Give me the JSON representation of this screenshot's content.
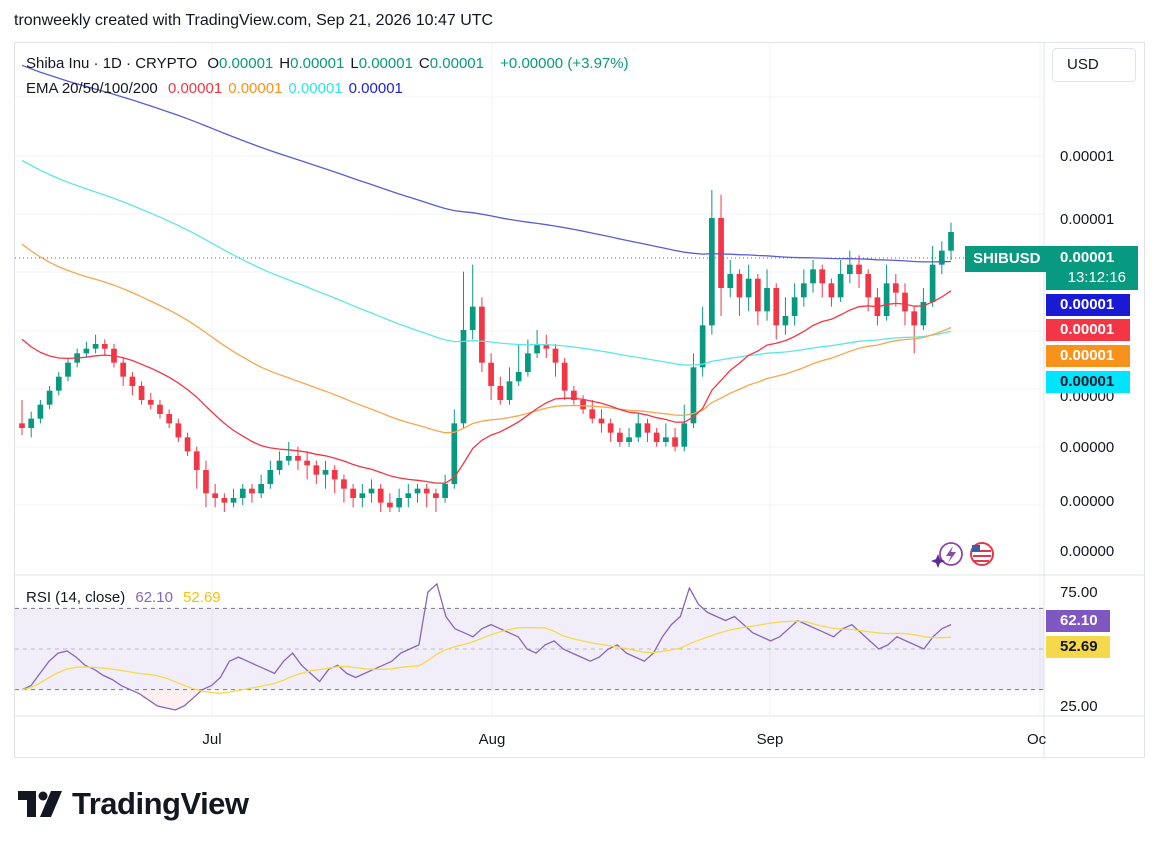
{
  "header": {
    "caption": "tronweekly created with TradingView.com, Sep 21, 2026 10:47 UTC"
  },
  "legend": {
    "symbol": "Shiba Inu · 1D · CRYPTO",
    "ohlc": [
      {
        "label": "O",
        "value": "0.00001"
      },
      {
        "label": "H",
        "value": "0.00001"
      },
      {
        "label": "L",
        "value": "0.00001"
      },
      {
        "label": "C",
        "value": "0.00001"
      }
    ],
    "change": "+0.00000 (+3.97%)",
    "ema_label": "EMA 20/50/100/200",
    "ema_values": [
      {
        "value": "0.00001",
        "color": "#f23645"
      },
      {
        "value": "0.00001",
        "color": "#f7931a"
      },
      {
        "value": "0.00001",
        "color": "#2ee6e6"
      },
      {
        "value": "0.00001",
        "color": "#1a1fd6"
      }
    ]
  },
  "currency": "USD",
  "price_tags": {
    "symbol_tag": "SHIBUSD",
    "last_price": "0.00001",
    "countdown": "13:12:16",
    "ema200": "0.00001",
    "ema20": "0.00001",
    "ema50": "0.00001",
    "ema100": "0.00001"
  },
  "rsi": {
    "label": "RSI (14, close)",
    "value": "62.10",
    "ma_value": "52.69",
    "axis_ticks": [
      "75.00",
      "25.00"
    ]
  },
  "footer": {
    "brand": "TradingView"
  },
  "colors": {
    "up": "#089981",
    "down": "#f23645",
    "ema20": "#f23645",
    "ema50": "#f7a64d",
    "ema100": "#5ee6e6",
    "ema200": "#5b5bd6",
    "rsi": "#8667b8",
    "rsi_ma": "#f5d94a",
    "rsi_tag": "#7e57c2",
    "rsi_ma_tag": "#f5d94a"
  },
  "chart_data": [
    {
      "type": "candlestick",
      "title": "Shiba Inu · 1D · CRYPTO",
      "x_axis": {
        "ticks": [
          "Jul",
          "Aug",
          "Sep",
          "Oc"
        ]
      },
      "y_axis": {
        "ticks": [
          "0.00001",
          "0.00001",
          "0.00000",
          "0.00000",
          "0.00000",
          "0.00000"
        ]
      },
      "candles_rel": [
        [
          50,
          48,
          60,
          45
        ],
        [
          48,
          52,
          55,
          44
        ],
        [
          52,
          58,
          60,
          50
        ],
        [
          58,
          64,
          66,
          56
        ],
        [
          64,
          70,
          72,
          62
        ],
        [
          70,
          76,
          78,
          68
        ],
        [
          76,
          80,
          82,
          74
        ],
        [
          80,
          82,
          85,
          78
        ],
        [
          82,
          84,
          88,
          80
        ],
        [
          84,
          82,
          86,
          79
        ],
        [
          82,
          76,
          84,
          74
        ],
        [
          76,
          70,
          78,
          66
        ],
        [
          70,
          66,
          72,
          62
        ],
        [
          66,
          60,
          68,
          58
        ],
        [
          60,
          58,
          63,
          56
        ],
        [
          58,
          54,
          60,
          52
        ],
        [
          54,
          50,
          56,
          48
        ],
        [
          50,
          44,
          52,
          42
        ],
        [
          44,
          38,
          46,
          36
        ],
        [
          38,
          30,
          40,
          22
        ],
        [
          30,
          20,
          34,
          14
        ],
        [
          20,
          18,
          24,
          14
        ],
        [
          18,
          16,
          20,
          12
        ],
        [
          16,
          18,
          22,
          14
        ],
        [
          18,
          22,
          24,
          15
        ],
        [
          22,
          20,
          24,
          16
        ],
        [
          20,
          24,
          28,
          18
        ],
        [
          24,
          30,
          34,
          22
        ],
        [
          30,
          34,
          38,
          28
        ],
        [
          34,
          36,
          42,
          32
        ],
        [
          36,
          34,
          40,
          30
        ],
        [
          34,
          32,
          38,
          26
        ],
        [
          32,
          28,
          34,
          24
        ],
        [
          28,
          30,
          34,
          22
        ],
        [
          30,
          26,
          32,
          20
        ],
        [
          26,
          22,
          28,
          16
        ],
        [
          22,
          18,
          24,
          14
        ],
        [
          18,
          20,
          24,
          14
        ],
        [
          20,
          22,
          26,
          16
        ],
        [
          22,
          16,
          24,
          12
        ],
        [
          16,
          14,
          20,
          12
        ],
        [
          14,
          18,
          22,
          12
        ],
        [
          18,
          20,
          24,
          14
        ],
        [
          20,
          22,
          24,
          16
        ],
        [
          22,
          20,
          24,
          14
        ],
        [
          20,
          18,
          22,
          12
        ],
        [
          18,
          24,
          28,
          16
        ],
        [
          24,
          50,
          56,
          22
        ],
        [
          50,
          90,
          115,
          48
        ],
        [
          90,
          100,
          118,
          86
        ],
        [
          100,
          76,
          104,
          72
        ],
        [
          76,
          66,
          80,
          60
        ],
        [
          66,
          60,
          70,
          58
        ],
        [
          60,
          68,
          74,
          58
        ],
        [
          68,
          72,
          84,
          66
        ],
        [
          72,
          80,
          86,
          70
        ],
        [
          80,
          84,
          90,
          78
        ],
        [
          84,
          82,
          88,
          78
        ],
        [
          82,
          76,
          84,
          70
        ],
        [
          76,
          64,
          78,
          60
        ],
        [
          64,
          60,
          66,
          58
        ],
        [
          60,
          56,
          62,
          54
        ],
        [
          56,
          52,
          60,
          50
        ],
        [
          52,
          50,
          56,
          46
        ],
        [
          50,
          46,
          52,
          42
        ],
        [
          46,
          42,
          48,
          40
        ],
        [
          42,
          44,
          48,
          40
        ],
        [
          44,
          50,
          54,
          42
        ],
        [
          50,
          46,
          52,
          42
        ],
        [
          46,
          42,
          48,
          40
        ],
        [
          42,
          44,
          50,
          40
        ],
        [
          44,
          40,
          48,
          38
        ],
        [
          40,
          50,
          58,
          38
        ],
        [
          50,
          74,
          80,
          48
        ],
        [
          74,
          92,
          100,
          70
        ],
        [
          92,
          138,
          150,
          88
        ],
        [
          138,
          108,
          148,
          96
        ],
        [
          108,
          114,
          120,
          104
        ],
        [
          114,
          104,
          116,
          96
        ],
        [
          104,
          112,
          118,
          98
        ],
        [
          112,
          98,
          114,
          92
        ],
        [
          98,
          108,
          116,
          94
        ],
        [
          108,
          92,
          110,
          86
        ],
        [
          92,
          96,
          104,
          88
        ],
        [
          96,
          104,
          110,
          92
        ],
        [
          104,
          110,
          116,
          100
        ],
        [
          110,
          116,
          120,
          106
        ],
        [
          116,
          110,
          118,
          104
        ],
        [
          110,
          104,
          112,
          100
        ],
        [
          104,
          114,
          120,
          102
        ],
        [
          114,
          118,
          124,
          110
        ],
        [
          118,
          114,
          122,
          108
        ],
        [
          114,
          104,
          116,
          98
        ],
        [
          104,
          96,
          108,
          92
        ],
        [
          96,
          110,
          118,
          94
        ],
        [
          110,
          106,
          114,
          100
        ],
        [
          106,
          98,
          110,
          92
        ],
        [
          98,
          92,
          100,
          80
        ],
        [
          92,
          102,
          108,
          90
        ],
        [
          102,
          118,
          126,
          100
        ],
        [
          118,
          124,
          128,
          114
        ],
        [
          124,
          132,
          136,
          120
        ]
      ],
      "note": "candles_rel are relative price levels (open, close, high, low) on an unlabeled scale; the chart prints all prices as 0.00001/0.00000"
    },
    {
      "type": "line",
      "title": "RSI (14, close)",
      "y_axis": {
        "ticks": [
          75.0,
          25.0
        ],
        "range": [
          20,
          80
        ],
        "band": [
          30,
          70
        ]
      },
      "series": [
        {
          "name": "RSI",
          "last": 62.1,
          "values": [
            30,
            32,
            38,
            44,
            48,
            49,
            46,
            42,
            40,
            37,
            35,
            32,
            30,
            28,
            25,
            22,
            21,
            20,
            22,
            26,
            30,
            32,
            36,
            44,
            46,
            44,
            42,
            40,
            38,
            44,
            48,
            42,
            38,
            34,
            40,
            42,
            38,
            36,
            38,
            40,
            42,
            44,
            48,
            50,
            52,
            78,
            82,
            66,
            60,
            58,
            56,
            60,
            62,
            60,
            58,
            56,
            50,
            48,
            52,
            54,
            50,
            48,
            46,
            44,
            46,
            50,
            52,
            48,
            46,
            44,
            48,
            56,
            62,
            66,
            80,
            72,
            68,
            66,
            64,
            66,
            62,
            58,
            56,
            54,
            56,
            60,
            64,
            62,
            60,
            58,
            56,
            60,
            62,
            58,
            54,
            50,
            52,
            56,
            54,
            52,
            50,
            56,
            60,
            62
          ],
          "note": "approximate trace"
        },
        {
          "name": "RSI-based MA",
          "last": 52.69
        }
      ]
    }
  ]
}
